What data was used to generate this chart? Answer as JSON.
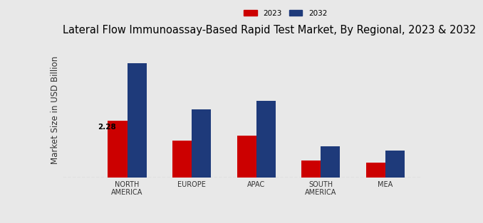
{
  "title": "Lateral Flow Immunoassay-Based Rapid Test Market, By Regional, 2023 & 2032",
  "ylabel": "Market Size in USD Billion",
  "categories": [
    "NORTH\nAMERICA",
    "EUROPE",
    "APAC",
    "SOUTH\nAMERICA",
    "MEA"
  ],
  "values_2023": [
    2.28,
    1.5,
    1.68,
    0.7,
    0.6
  ],
  "values_2032": [
    4.6,
    2.75,
    3.1,
    1.25,
    1.1
  ],
  "color_2023": "#cc0000",
  "color_2032": "#1e3a7a",
  "bar_width": 0.3,
  "annotation_value": "2.28",
  "background_color": "#e8e8e8",
  "ylim": [
    0,
    5.5
  ],
  "legend_labels": [
    "2023",
    "2032"
  ],
  "title_fontsize": 10.5,
  "axis_label_fontsize": 8.5,
  "tick_fontsize": 7,
  "dashed_line_color": "#aaaaaa",
  "bottom_bar_color": "#cc0000"
}
